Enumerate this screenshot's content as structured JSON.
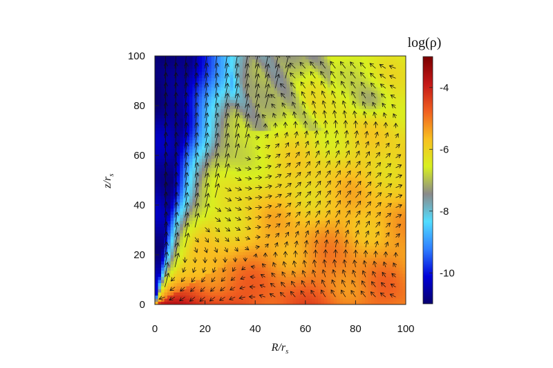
{
  "chart_data": {
    "type": "heatmap",
    "title": "",
    "xlabel": "R/r_s",
    "ylabel": "z/r_s",
    "xlim": [
      0,
      100
    ],
    "ylim": [
      0,
      100
    ],
    "x_ticks": [
      "0",
      "20",
      "40",
      "60",
      "80",
      "100"
    ],
    "y_ticks": [
      "0",
      "20",
      "40",
      "60",
      "80",
      "100"
    ],
    "colorbar": {
      "title": "log(ρ)",
      "range": [
        -11,
        -3
      ],
      "ticks": [
        "-4",
        "-6",
        "-8",
        "-10"
      ],
      "tick_values": [
        -4,
        -6,
        -8,
        -10
      ],
      "colors": [
        "#08006e",
        "#0000d8",
        "#2f7fff",
        "#52ddff",
        "#8a8a8a",
        "#d8f020",
        "#f8c020",
        "#f06020",
        "#c41818",
        "#7a0000"
      ]
    },
    "overlay": "velocity field arrows (black)",
    "grid": false
  }
}
